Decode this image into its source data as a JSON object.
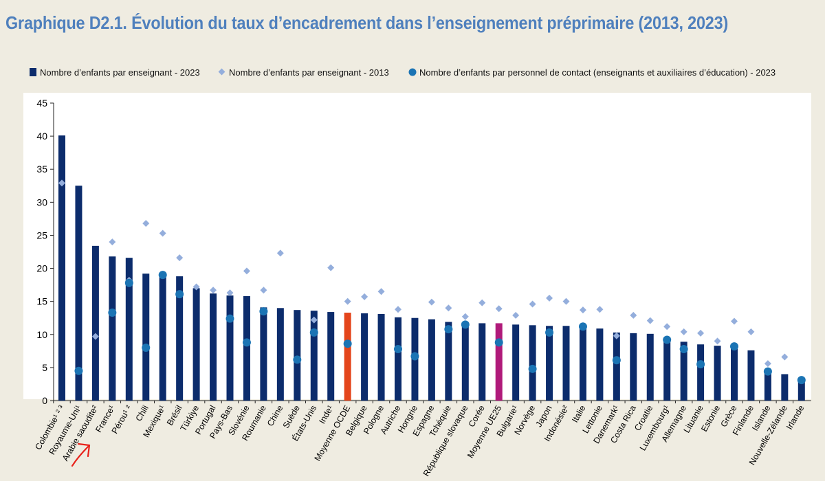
{
  "title": "Graphique D2.1. Évolution du taux d’encadrement dans l’enseignement préprimaire (2013, 2023)",
  "colors": {
    "background": "#efece1",
    "plot_bg": "#ffffff",
    "title": "#4f80bd",
    "bar_2023": "#0c2c6c",
    "bar_oecd": "#e4451b",
    "bar_eu25": "#b01a7a",
    "marker_2013": "#94aedc",
    "marker_contact": "#1b74b4",
    "annotation_arrow": "#e8221b"
  },
  "chart_data": {
    "type": "bar",
    "title": "Graphique D2.1. Évolution du taux d’encadrement dans l’enseignement préprimaire (2013, 2023)",
    "xlabel": "",
    "ylabel": "",
    "ylim": [
      0,
      45
    ],
    "yticks": [
      0,
      5,
      10,
      15,
      20,
      25,
      30,
      35,
      40,
      45
    ],
    "grid": false,
    "legend_position": "top",
    "legend": [
      "Nombre d’enfants par enseignant - 2023",
      "Nombre d’enfants par enseignant - 2013",
      "Nombre d’enfants par personnel de contact (enseignants et auxiliaires d’éducation) - 2023"
    ],
    "categories": [
      "Colombie¹ ² ³",
      "Royaume-Uni¹",
      "Arabie saoudite²",
      "France¹",
      "Pérou¹ ²",
      "Chili",
      "Mexique¹",
      "Brésil",
      "Türkiye",
      "Portugal",
      "Pays-Bas",
      "Slovénie",
      "Roumanie",
      "Chine",
      "Suède",
      "États-Unis",
      "Inde¹",
      "Moyenne OCDE",
      "Belgique",
      "Pologne",
      "Autriche",
      "Hongrie",
      "Espagne",
      "Tchéquie",
      "République slovaque",
      "Corée",
      "Moyenne UE25",
      "Bulgarie¹",
      "Norvège",
      "Japon",
      "Indonésie²",
      "Italie",
      "Lettonie",
      "Danemark¹",
      "Costa Rica",
      "Croatie",
      "Luxembourg¹",
      "Allemagne",
      "Lituanie",
      "Estonie",
      "Grèce",
      "Finlande",
      "Islande",
      "Nouvelle-Zélande",
      "Irlande"
    ],
    "highlight": {
      "Moyenne OCDE": "oecd",
      "Moyenne UE25": "eu25"
    },
    "series": [
      {
        "name": "Nombre d’enfants par enseignant - 2023",
        "kind": "bar",
        "values": [
          40.1,
          32.5,
          23.4,
          21.8,
          21.6,
          19.2,
          18.9,
          18.8,
          17.0,
          16.2,
          15.9,
          15.8,
          14.1,
          14.0,
          13.7,
          13.6,
          13.4,
          13.3,
          13.2,
          13.1,
          12.6,
          12.5,
          12.3,
          11.9,
          11.8,
          11.7,
          11.7,
          11.5,
          11.4,
          11.3,
          11.3,
          11.2,
          10.9,
          10.3,
          10.2,
          10.1,
          9.2,
          8.9,
          8.5,
          8.3,
          8.2,
          7.6,
          4.5,
          4.0,
          3.0
        ]
      },
      {
        "name": "Nombre d’enfants par enseignant - 2013",
        "kind": "diamond",
        "values": [
          32.9,
          null,
          9.7,
          24.0,
          18.2,
          26.8,
          25.3,
          21.6,
          17.2,
          16.7,
          16.3,
          19.6,
          16.7,
          22.3,
          null,
          12.2,
          20.1,
          15.0,
          15.7,
          16.5,
          13.8,
          null,
          14.9,
          14.0,
          12.7,
          14.8,
          13.9,
          12.9,
          14.6,
          15.5,
          15.0,
          13.7,
          13.8,
          9.8,
          12.9,
          12.1,
          11.2,
          10.4,
          10.2,
          9.0,
          12.0,
          10.4,
          5.6,
          6.6,
          null
        ]
      },
      {
        "name": "Nombre d’enfants par personnel de contact (enseignants et auxiliaires d’éducation) - 2023",
        "kind": "circle",
        "values": [
          null,
          4.5,
          null,
          13.3,
          17.8,
          8.0,
          19.0,
          16.1,
          null,
          null,
          12.4,
          8.8,
          13.5,
          null,
          6.2,
          10.3,
          null,
          8.6,
          null,
          null,
          7.8,
          6.7,
          null,
          10.8,
          11.5,
          null,
          8.8,
          null,
          4.8,
          10.3,
          null,
          11.2,
          null,
          6.1,
          null,
          null,
          9.2,
          7.8,
          5.5,
          null,
          8.2,
          null,
          4.4,
          null,
          3.1
        ]
      }
    ]
  }
}
